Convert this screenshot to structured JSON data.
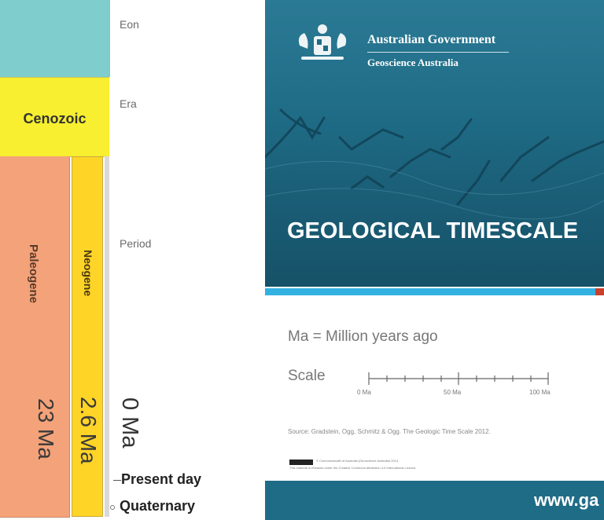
{
  "timescale": {
    "row_labels": {
      "eon": "Eon",
      "era": "Era",
      "period": "Period"
    },
    "era": {
      "name": "Cenozoic",
      "color": "#f7ef2f"
    },
    "eon_color": "#7fcdcc",
    "periods": [
      {
        "name": "Paleogene",
        "start": "23 Ma",
        "color": "#f4a279"
      },
      {
        "name": "Neogene",
        "start": "2.6 Ma",
        "color": "#fed427"
      }
    ],
    "zero_label": "0 Ma",
    "present_label": "Present day",
    "quaternary_label": "Quaternary"
  },
  "poster": {
    "gov_line1": "Australian Government",
    "gov_line2": "Geoscience Australia",
    "title": "GEOLOGICAL TIMESCALE",
    "ma_definition": "Ma = Million years ago",
    "scale_label": "Scale",
    "scale_ticks": [
      "0 Ma",
      "50 Ma",
      "100 Ma"
    ],
    "source": "Source: Gradstein, Ogg, Schmitz & Ogg. The Geologic Time Scale 2012.",
    "copyright_line1": "© Commonwealth of Australia (Geoscience Australia) 2014.",
    "copyright_line2": "This material is released under the Creative Commons Attribution 4.0 International Licence.",
    "website": "www.ga",
    "accent_colors": {
      "header": "#1f6c86",
      "stripe": "#33b2e2",
      "stripe_end": "#c8402e"
    }
  }
}
